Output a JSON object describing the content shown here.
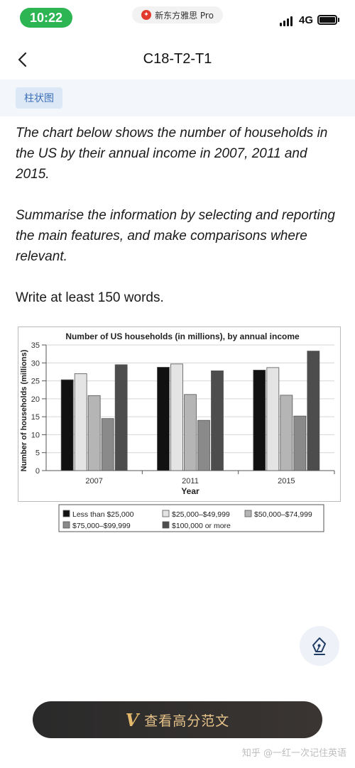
{
  "status_bar": {
    "time": "10:22",
    "app_name": "新东方雅思 Pro",
    "network": "4G"
  },
  "header": {
    "title": "C18-T2-T1"
  },
  "tag": {
    "label": "柱状图"
  },
  "prompt": {
    "paragraph1": "The chart below shows the number of households in the US by their annual income in 2007, 2011 and 2015.",
    "paragraph2": "Summarise the information by selecting and reporting the main features, and make comparisons where relevant.",
    "paragraph3": "Write at least 150 words."
  },
  "chart_data": {
    "type": "bar",
    "title": "Number of US households (in millions), by annual income",
    "xlabel": "Year",
    "ylabel": "Number of households (millions)",
    "categories": [
      "2007",
      "2011",
      "2015"
    ],
    "ylim": [
      0,
      35
    ],
    "yticks": [
      0,
      5,
      10,
      15,
      20,
      25,
      30,
      35
    ],
    "grid": true,
    "legend_position": "bottom",
    "series": [
      {
        "name": "Less than $25,000",
        "values": [
          25.3,
          28.8,
          28.0
        ],
        "color": "#111111"
      },
      {
        "name": "$25,000–$49,999",
        "values": [
          27.0,
          29.7,
          28.7
        ],
        "color": "#e4e4e4"
      },
      {
        "name": "$50,000–$74,999",
        "values": [
          20.9,
          21.2,
          21.0
        ],
        "color": "#b5b5b5"
      },
      {
        "name": "$75,000–$99,999",
        "values": [
          14.5,
          14.0,
          15.2
        ],
        "color": "#8a8a8a"
      },
      {
        "name": "$100,000 or more",
        "values": [
          29.5,
          27.8,
          33.3
        ],
        "color": "#4d4d4d"
      }
    ]
  },
  "cta": {
    "v_mark": "V",
    "label": "查看高分范文"
  },
  "watermark": "知乎 @一红一次记住英语"
}
